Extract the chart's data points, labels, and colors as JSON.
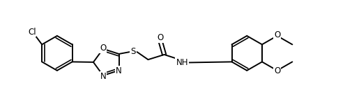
{
  "background_color": "#ffffff",
  "line_color": "#000000",
  "line_width": 1.4,
  "font_size": 8.5,
  "figsize": [
    5.06,
    1.46
  ],
  "dpi": 100,
  "xlim": [
    0,
    10.2
  ],
  "ylim": [
    0,
    3.0
  ]
}
